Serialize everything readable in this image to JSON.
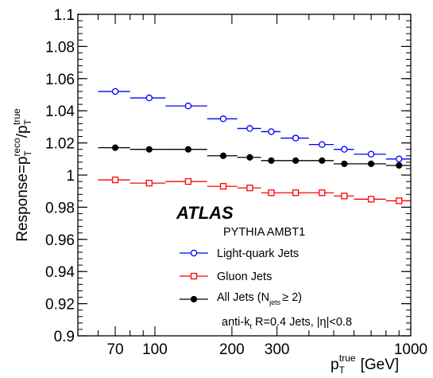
{
  "chart_data": {
    "type": "scatter",
    "title": "",
    "ylabel": {
      "base": "Response=p",
      "sub1": "T",
      "sup1": "reco",
      "slash": "/p",
      "sub2": "T",
      "sup2": "true"
    },
    "xlabel": {
      "base": "p",
      "sub": "T",
      "sup": "true",
      "unit": "[GeV]"
    },
    "xscale": "log",
    "xlim": [
      50,
      1000
    ],
    "ylim": [
      0.9,
      1.1
    ],
    "x_ticks": [
      {
        "value": 70,
        "label": "70"
      },
      {
        "value": 100,
        "label": "100"
      },
      {
        "value": 200,
        "label": "200"
      },
      {
        "value": 300,
        "label": "300"
      },
      {
        "value": 1000,
        "label": "1000"
      }
    ],
    "y_ticks": [
      {
        "value": 0.9,
        "label": "0.9"
      },
      {
        "value": 0.92,
        "label": "0.92"
      },
      {
        "value": 0.94,
        "label": "0.94"
      },
      {
        "value": 0.96,
        "label": "0.96"
      },
      {
        "value": 0.98,
        "label": "0.98"
      },
      {
        "value": 1.0,
        "label": "1"
      },
      {
        "value": 1.02,
        "label": "1.02"
      },
      {
        "value": 1.04,
        "label": "1.04"
      },
      {
        "value": 1.06,
        "label": "1.06"
      },
      {
        "value": 1.08,
        "label": "1.08"
      },
      {
        "value": 1.1,
        "label": "1.1"
      }
    ],
    "bin_edges": [
      60,
      80,
      110,
      160,
      210,
      260,
      310,
      400,
      500,
      600,
      800,
      1000
    ],
    "series": [
      {
        "name": "Light-quark Jets",
        "marker": "open-circle",
        "color": "#0000ff",
        "x": [
          70,
          95,
          135,
          185,
          235,
          285,
          355,
          450,
          550,
          700,
          900
        ],
        "y": [
          1.052,
          1.048,
          1.043,
          1.035,
          1.029,
          1.027,
          1.023,
          1.019,
          1.016,
          1.013,
          1.01
        ]
      },
      {
        "name": "Gluon Jets",
        "marker": "open-square",
        "color": "#ff0000",
        "x": [
          70,
          95,
          135,
          185,
          235,
          285,
          355,
          450,
          550,
          700,
          900
        ],
        "y": [
          0.997,
          0.995,
          0.996,
          0.993,
          0.992,
          0.989,
          0.989,
          0.989,
          0.987,
          0.985,
          0.984
        ]
      },
      {
        "name_parts": {
          "a": "All Jets (N",
          "sub": "jets",
          "b": "≥ 2)"
        },
        "marker": "filled-circle",
        "color": "#000000",
        "x": [
          70,
          95,
          135,
          185,
          235,
          285,
          355,
          450,
          550,
          700,
          900
        ],
        "y": [
          1.017,
          1.016,
          1.016,
          1.012,
          1.011,
          1.009,
          1.009,
          1.009,
          1.007,
          1.007,
          1.006
        ]
      }
    ],
    "annotations": {
      "experiment": "ATLAS",
      "generator": "PYTHIA AMBT1",
      "jet_def": {
        "a": "anti-k",
        "sub": "t",
        "b": " R=0.4 Jets, |η|<0.8"
      }
    },
    "legend_position": "lower-right"
  }
}
